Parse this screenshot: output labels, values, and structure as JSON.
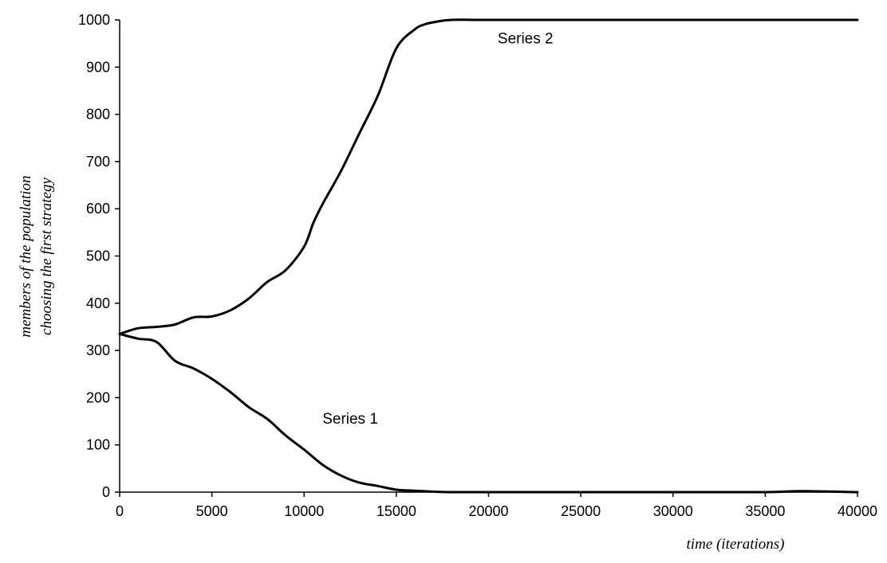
{
  "chart_data": {
    "type": "line",
    "title": "",
    "xlabel": "time (iterations)",
    "ylabel_lines": [
      "members of the population",
      "choosing the first strategy"
    ],
    "xlim": [
      0,
      40000
    ],
    "ylim": [
      0,
      1000
    ],
    "x_ticks": [
      0,
      5000,
      10000,
      15000,
      20000,
      25000,
      30000,
      35000,
      40000
    ],
    "y_ticks": [
      0,
      100,
      200,
      300,
      400,
      500,
      600,
      700,
      800,
      900,
      1000
    ],
    "grid": false,
    "legend": "none",
    "line_color": "#000000",
    "series": [
      {
        "name": "Series 1",
        "x": [
          0,
          1000,
          2000,
          3000,
          4000,
          5000,
          6000,
          7000,
          8000,
          9000,
          10000,
          11000,
          12000,
          13000,
          14000,
          15000,
          16000,
          17000,
          18000,
          20000,
          25000,
          30000,
          35000,
          37000,
          40000
        ],
        "y": [
          335,
          325,
          318,
          278,
          262,
          240,
          212,
          180,
          155,
          120,
          90,
          58,
          35,
          20,
          13,
          5,
          3,
          1,
          0,
          0,
          0,
          0,
          0,
          2,
          0
        ]
      },
      {
        "name": "Series 2",
        "x": [
          0,
          1000,
          2000,
          3000,
          4000,
          5000,
          6000,
          7000,
          8000,
          9000,
          10000,
          10500,
          11000,
          12000,
          13000,
          14000,
          15000,
          16000,
          16500,
          17000,
          18000,
          20000,
          25000,
          30000,
          35000,
          40000
        ],
        "y": [
          335,
          347,
          350,
          355,
          370,
          372,
          385,
          410,
          445,
          470,
          520,
          570,
          610,
          680,
          760,
          840,
          940,
          980,
          990,
          995,
          1000,
          1000,
          1000,
          1000,
          1000,
          1000
        ]
      }
    ],
    "annotations": [
      {
        "text": "Series 2",
        "x": 22000,
        "y": 950
      },
      {
        "text": "Series 1",
        "x": 12500,
        "y": 145
      }
    ]
  }
}
